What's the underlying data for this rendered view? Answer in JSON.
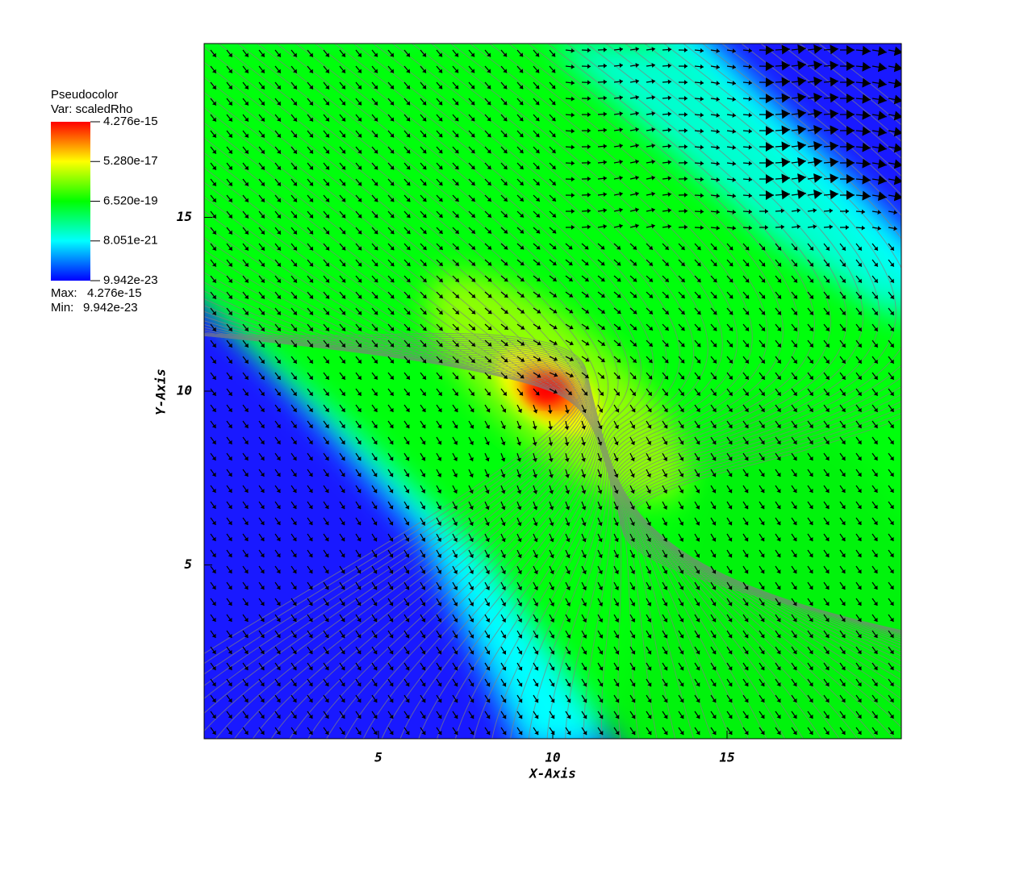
{
  "chart_data": {
    "type": "pseudocolor",
    "title": "Pseudocolor",
    "subtitle": "Var: scaledRho",
    "x_label": "X-Axis",
    "y_label": "Y-Axis",
    "xlim": [
      0,
      20
    ],
    "ylim": [
      0,
      20
    ],
    "xticks": [
      5,
      10,
      15
    ],
    "yticks": [
      5,
      10,
      15
    ],
    "colormap": [
      "#0000ff",
      "#00ffff",
      "#00ff00",
      "#ffff00",
      "#ff0000"
    ],
    "colorbar": {
      "scale": "log",
      "clim": [
        9.942e-23,
        4.276e-15
      ],
      "ticks": [
        {
          "value": 4.276e-15,
          "label": "4.276e-15"
        },
        {
          "value": 5.28e-17,
          "label": "5.280e-17"
        },
        {
          "value": 6.52e-19,
          "label": "6.520e-19"
        },
        {
          "value": 8.051e-21,
          "label": "8.051e-21"
        },
        {
          "value": 9.942e-23,
          "label": "9.942e-23"
        }
      ]
    },
    "max_label": "Max:",
    "max": {
      "value": 4.276e-15,
      "label": "4.276e-15"
    },
    "min_label": "Min:",
    "min": {
      "value": 9.942e-23,
      "label": "9.942e-23"
    }
  }
}
